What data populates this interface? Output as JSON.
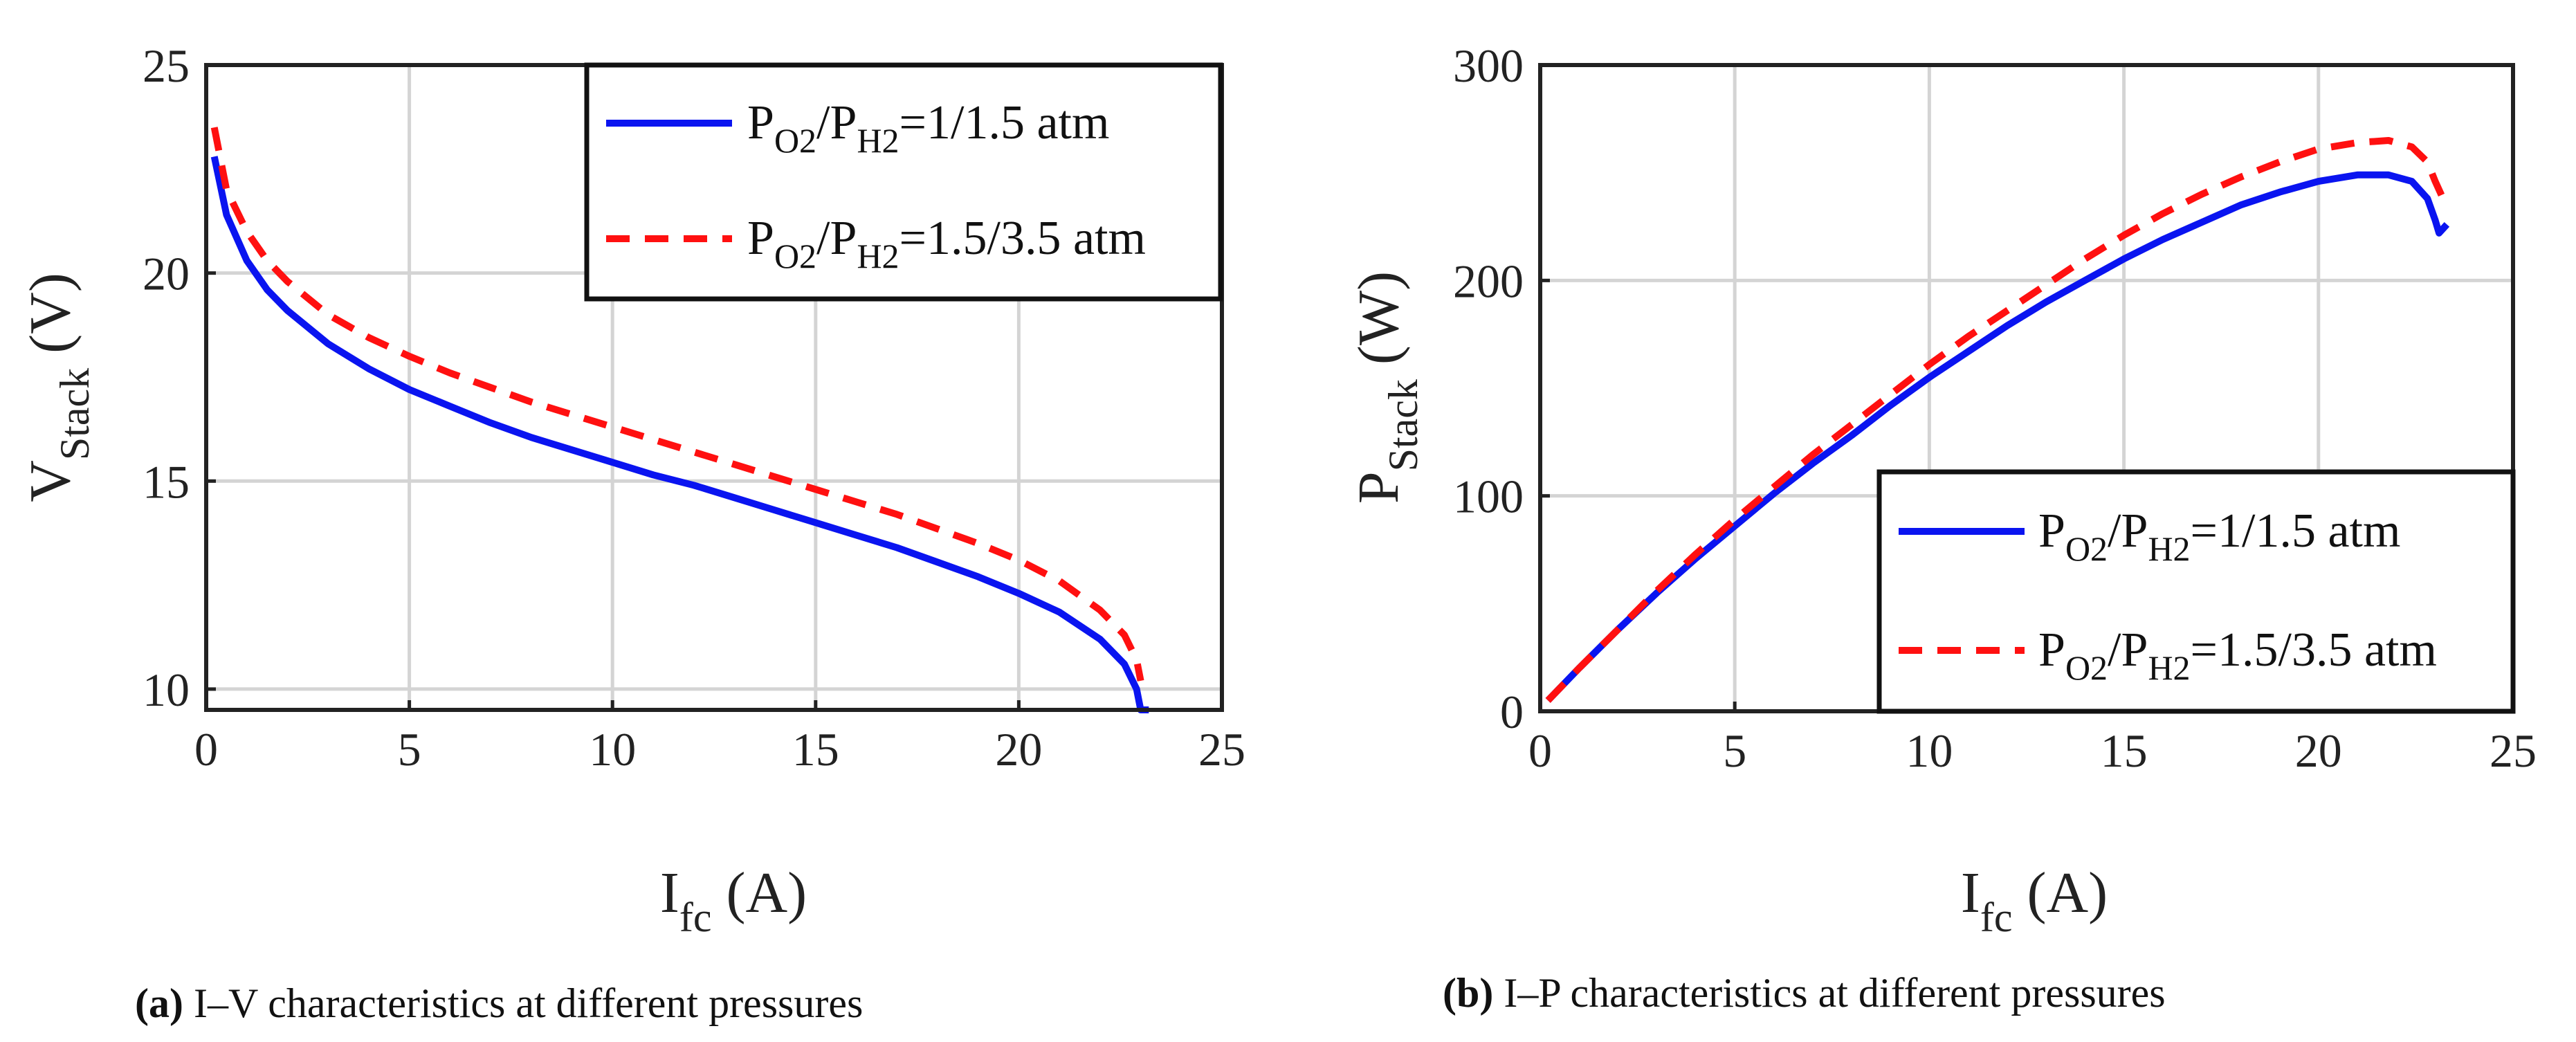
{
  "chart_data": [
    {
      "type": "line",
      "caption_label": "(a)",
      "caption_text": " I–V characteristics at different pressures",
      "xlabel": {
        "main": "I",
        "sub": "fc",
        "unit": " (A)"
      },
      "ylabel": {
        "main": "V",
        "sub": "Stack",
        "unit": " (V)"
      },
      "xlim": [
        0,
        25
      ],
      "ylim": [
        9.5,
        25
      ],
      "xticks": [
        0,
        5,
        10,
        15,
        20,
        25
      ],
      "yticks": [
        10,
        15,
        20,
        25
      ],
      "grid": true,
      "legend_position": "top-right",
      "series": [
        {
          "name": {
            "p1": "P",
            "s1": "O2",
            "p2": "/P",
            "s2": "H2",
            "p3": "=1/1.5 atm"
          },
          "color": "#0a14f0",
          "style": "solid",
          "points": [
            [
              0.2,
              22.8
            ],
            [
              0.5,
              21.4
            ],
            [
              1,
              20.3
            ],
            [
              1.5,
              19.6
            ],
            [
              2,
              19.1
            ],
            [
              3,
              18.3
            ],
            [
              4,
              17.7
            ],
            [
              5,
              17.2
            ],
            [
              6,
              16.8
            ],
            [
              7,
              16.4
            ],
            [
              8,
              16.05
            ],
            [
              9,
              15.75
            ],
            [
              10,
              15.45
            ],
            [
              11,
              15.15
            ],
            [
              12,
              14.9
            ],
            [
              13,
              14.6
            ],
            [
              14,
              14.3
            ],
            [
              15,
              14.0
            ],
            [
              16,
              13.7
            ],
            [
              17,
              13.4
            ],
            [
              18,
              13.05
            ],
            [
              19,
              12.7
            ],
            [
              20,
              12.3
            ],
            [
              21,
              11.85
            ],
            [
              22,
              11.2
            ],
            [
              22.6,
              10.6
            ],
            [
              22.9,
              10.0
            ],
            [
              23.0,
              9.5
            ],
            [
              23.2,
              9.5
            ]
          ]
        },
        {
          "name": {
            "p1": "P",
            "s1": "O2",
            "p2": "/P",
            "s2": "H2",
            "p3": "=1.5/3.5 atm"
          },
          "color": "#ff1010",
          "style": "dashed",
          "points": [
            [
              0.2,
              23.5
            ],
            [
              0.5,
              22.0
            ],
            [
              1,
              21.0
            ],
            [
              1.5,
              20.3
            ],
            [
              2,
              19.8
            ],
            [
              3,
              19.0
            ],
            [
              4,
              18.45
            ],
            [
              5,
              18.0
            ],
            [
              6,
              17.6
            ],
            [
              7,
              17.25
            ],
            [
              8,
              16.9
            ],
            [
              9,
              16.6
            ],
            [
              10,
              16.3
            ],
            [
              11,
              16.0
            ],
            [
              12,
              15.7
            ],
            [
              13,
              15.4
            ],
            [
              14,
              15.1
            ],
            [
              15,
              14.8
            ],
            [
              16,
              14.5
            ],
            [
              17,
              14.2
            ],
            [
              18,
              13.85
            ],
            [
              19,
              13.5
            ],
            [
              20,
              13.1
            ],
            [
              21,
              12.6
            ],
            [
              22,
              11.9
            ],
            [
              22.6,
              11.3
            ],
            [
              22.9,
              10.7
            ],
            [
              23.0,
              10.2
            ]
          ]
        }
      ]
    },
    {
      "type": "line",
      "caption_label": "(b)",
      "caption_text": " I–P characteristics at different pressures",
      "xlabel": {
        "main": "I",
        "sub": "fc",
        "unit": " (A)"
      },
      "ylabel": {
        "main": "P",
        "sub": "Stack",
        "unit": " (W)"
      },
      "xlim": [
        0,
        25
      ],
      "ylim": [
        0,
        300
      ],
      "xticks": [
        0,
        5,
        10,
        15,
        20,
        25
      ],
      "yticks": [
        0,
        100,
        200,
        300
      ],
      "grid": true,
      "legend_position": "bottom-right",
      "series": [
        {
          "name": {
            "p1": "P",
            "s1": "O2",
            "p2": "/P",
            "s2": "H2",
            "p3": "=1/1.5 atm"
          },
          "color": "#0a14f0",
          "style": "solid",
          "points": [
            [
              0.2,
              5
            ],
            [
              1,
              20
            ],
            [
              2,
              38
            ],
            [
              3,
              55
            ],
            [
              4,
              71
            ],
            [
              5,
              86
            ],
            [
              6,
              101
            ],
            [
              7,
              115
            ],
            [
              8,
              128
            ],
            [
              9,
              142
            ],
            [
              10,
              155
            ],
            [
              11,
              167
            ],
            [
              12,
              179
            ],
            [
              13,
              190
            ],
            [
              14,
              200
            ],
            [
              15,
              210
            ],
            [
              16,
              219
            ],
            [
              17,
              227
            ],
            [
              18,
              235
            ],
            [
              19,
              241
            ],
            [
              20,
              246
            ],
            [
              21,
              249
            ],
            [
              21.8,
              249
            ],
            [
              22.4,
              246
            ],
            [
              22.8,
              238
            ],
            [
              23.0,
              228
            ],
            [
              23.1,
              222
            ],
            [
              23.3,
              226
            ]
          ]
        },
        {
          "name": {
            "p1": "P",
            "s1": "O2",
            "p2": "/P",
            "s2": "H2",
            "p3": "=1.5/3.5 atm"
          },
          "color": "#ff1010",
          "style": "dashed",
          "points": [
            [
              0.2,
              5
            ],
            [
              1,
              20
            ],
            [
              2,
              38
            ],
            [
              3,
              56
            ],
            [
              4,
              73
            ],
            [
              5,
              89
            ],
            [
              6,
              104
            ],
            [
              7,
              119
            ],
            [
              8,
              133
            ],
            [
              9,
              147
            ],
            [
              10,
              161
            ],
            [
              11,
              174
            ],
            [
              12,
              186
            ],
            [
              13,
              198
            ],
            [
              14,
              210
            ],
            [
              15,
              221
            ],
            [
              16,
              231
            ],
            [
              17,
              240
            ],
            [
              18,
              248
            ],
            [
              19,
              255
            ],
            [
              20,
              261
            ],
            [
              21,
              264
            ],
            [
              21.8,
              265
            ],
            [
              22.4,
              262
            ],
            [
              22.8,
              255
            ],
            [
              23.0,
              246
            ],
            [
              23.2,
              238
            ]
          ]
        }
      ]
    }
  ]
}
